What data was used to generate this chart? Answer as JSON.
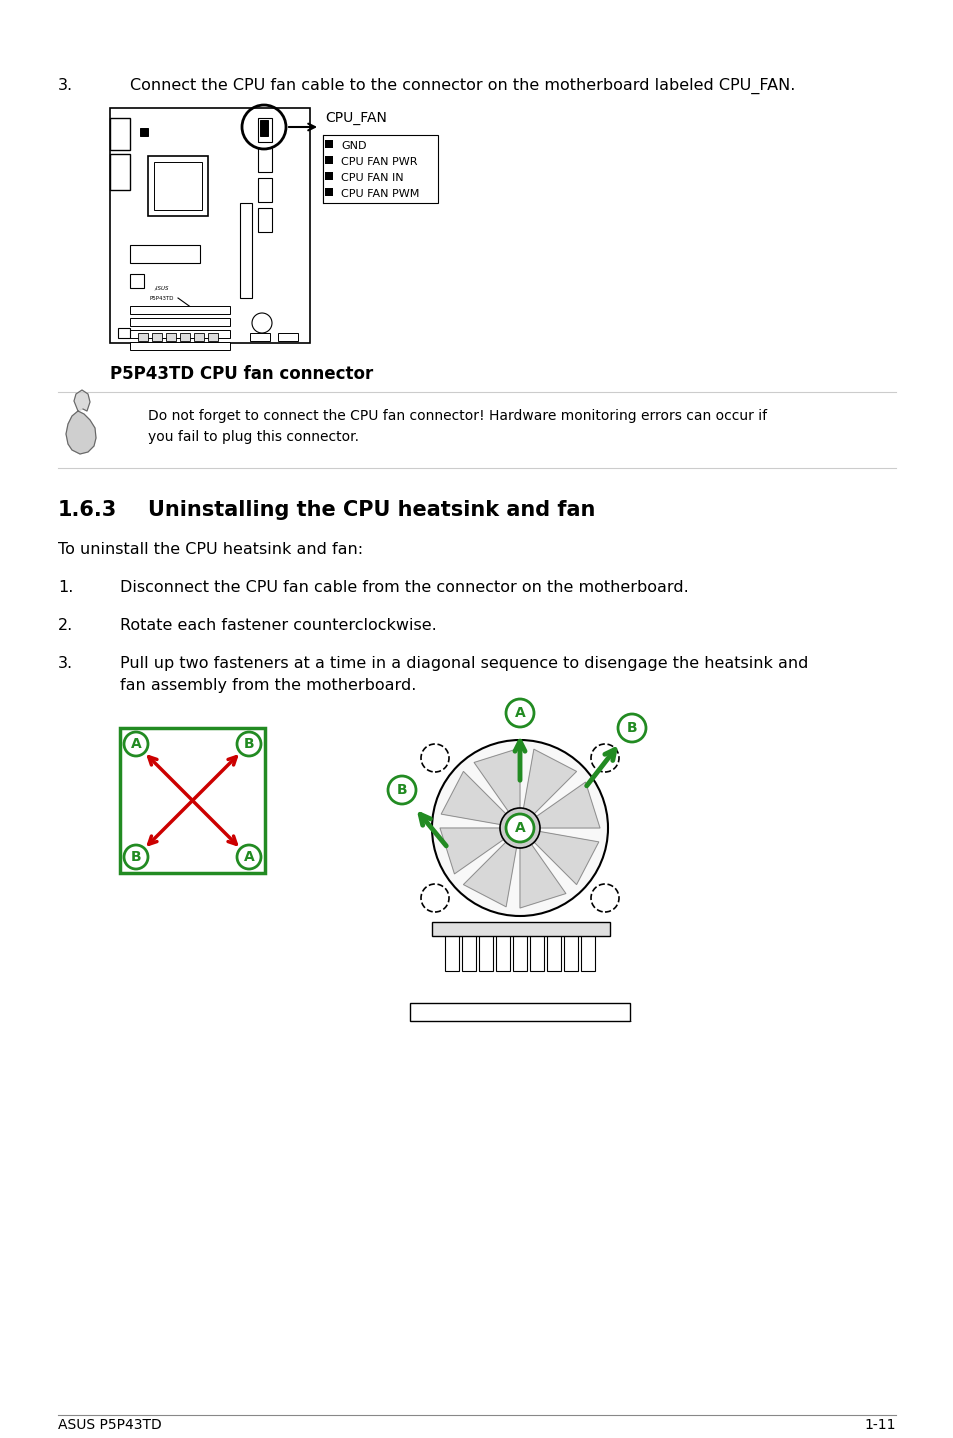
{
  "bg_color": "#ffffff",
  "step3_text_num": "3.",
  "step3_text_body": "Connect the CPU fan cable to the connector on the motherboard labeled CPU_FAN.",
  "caption_text": "P5P43TD CPU fan connector",
  "note_text": "Do not forget to connect the CPU fan connector! Hardware monitoring errors can occur if\nyou fail to plug this connector.",
  "section_number": "1.6.3",
  "section_title": "Uninstalling the CPU heatsink and fan",
  "intro_text": "To uninstall the CPU heatsink and fan:",
  "step1_num": "1.",
  "step1_body": "Disconnect the CPU fan cable from the connector on the motherboard.",
  "step2_num": "2.",
  "step2_body": "Rotate each fastener counterclockwise.",
  "step3b_num": "3.",
  "step3b_line1": "Pull up two fasteners at a time in a diagonal sequence to disengage the heatsink and",
  "step3b_line2": "fan assembly from the motherboard.",
  "pin_labels": [
    "GND",
    "CPU FAN PWR",
    "CPU FAN IN",
    "CPU FAN PWM"
  ],
  "cpu_fan_label": "CPU_FAN",
  "footer_left": "ASUS P5P43TD",
  "footer_right": "1-11",
  "green_color": "#228B22",
  "red_color": "#CC0000",
  "black": "#000000",
  "gray": "#888888",
  "light_gray": "#cccccc"
}
